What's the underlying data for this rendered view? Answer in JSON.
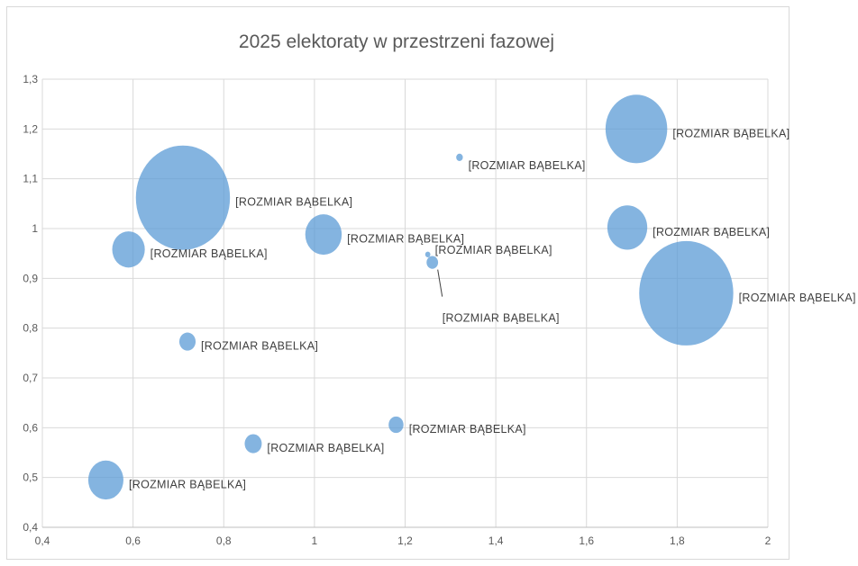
{
  "chart_data": {
    "type": "bubble",
    "title": "2025 elektoraty w przestrzeni fazowej",
    "xlim": [
      0.4,
      2.0
    ],
    "ylim": [
      0.4,
      1.3
    ],
    "x_ticks": [
      "0,4",
      "0,6",
      "0,8",
      "1",
      "1,2",
      "1,4",
      "1,6",
      "1,8",
      "2"
    ],
    "y_ticks": [
      "0,4",
      "0,5",
      "0,6",
      "0,7",
      "0,8",
      "0,9",
      "1",
      "1,1",
      "1,2",
      "1,3"
    ],
    "grid": true,
    "colors": {
      "bubble": "#5b9bd5",
      "grid": "#d9d9d9",
      "text": "#595959"
    },
    "points": [
      {
        "x": 0.71,
        "y": 1.062,
        "size": 100,
        "label": "[ROZMIAR BĄBELKA]"
      },
      {
        "x": 1.82,
        "y": 0.87,
        "size": 100,
        "label": "[ROZMIAR BĄBELKA]"
      },
      {
        "x": 1.71,
        "y": 1.2,
        "size": 43,
        "label": "[ROZMIAR BĄBELKA]"
      },
      {
        "x": 1.69,
        "y": 1.002,
        "size": 18,
        "label": "[ROZMIAR BĄBELKA]"
      },
      {
        "x": 1.02,
        "y": 0.988,
        "size": 15,
        "label": "[ROZMIAR BĄBELKA]"
      },
      {
        "x": 0.59,
        "y": 0.958,
        "size": 12,
        "label": "[ROZMIAR BĄBELKA]"
      },
      {
        "x": 0.54,
        "y": 0.495,
        "size": 14,
        "label": "[ROZMIAR BĄBELKA]"
      },
      {
        "x": 0.72,
        "y": 0.773,
        "size": 3,
        "label": "[ROZMIAR BĄBELKA]"
      },
      {
        "x": 0.865,
        "y": 0.568,
        "size": 3.3,
        "label": "[ROZMIAR BĄBELKA]"
      },
      {
        "x": 1.18,
        "y": 0.606,
        "size": 2.5,
        "label": "[ROZMIAR BĄBELKA]"
      },
      {
        "x": 1.26,
        "y": 0.932,
        "size": 1.5,
        "label": "[ROZMIAR BĄBELKA]"
      },
      {
        "x": 1.25,
        "y": 0.948,
        "size": 0.3,
        "label": "[ROZMIAR BĄBELKA]"
      },
      {
        "x": 1.32,
        "y": 1.143,
        "size": 0.5,
        "label": "[ROZMIAR BĄBELKA]"
      }
    ]
  }
}
